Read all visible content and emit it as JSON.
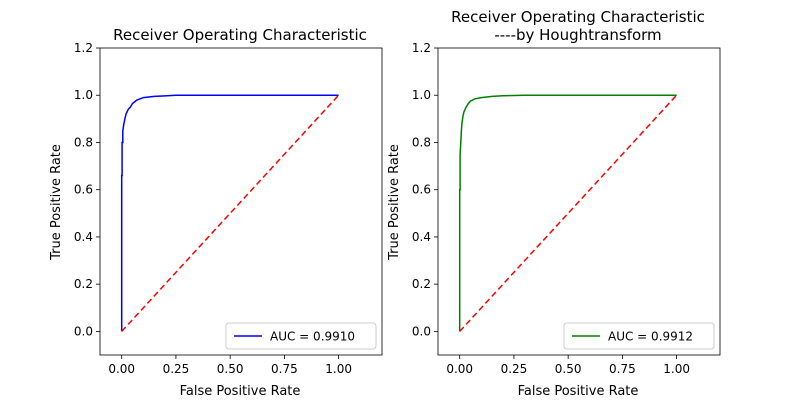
{
  "chart_data": [
    {
      "type": "line",
      "title": "Receiver Operating Characteristic",
      "xlabel": "False Positive Rate",
      "ylabel": "True Positive Rate",
      "xlim": [
        -0.1,
        1.2
      ],
      "ylim": [
        -0.1,
        1.2
      ],
      "x_ticks": [
        "0.00",
        "0.25",
        "0.50",
        "0.75",
        "1.00"
      ],
      "y_ticks": [
        "0.0",
        "0.2",
        "0.4",
        "0.6",
        "0.8",
        "1.0",
        "1.2"
      ],
      "legend_position": "lower-right",
      "series": [
        {
          "name": "AUC = 0.9910",
          "color": "#0000ff",
          "style": "solid",
          "x": [
            0,
            0,
            0.002,
            0.002,
            0.005,
            0.005,
            0.01,
            0.015,
            0.02,
            0.03,
            0.04,
            0.05,
            0.07,
            0.1,
            0.15,
            0.2,
            0.25,
            0.3,
            0.5,
            0.75,
            1.0
          ],
          "y": [
            0,
            0.66,
            0.66,
            0.8,
            0.8,
            0.85,
            0.88,
            0.9,
            0.92,
            0.94,
            0.95,
            0.965,
            0.98,
            0.99,
            0.995,
            0.997,
            1.0,
            1.0,
            1.0,
            1.0,
            1.0
          ]
        },
        {
          "name": "",
          "color": "#ff0000",
          "style": "dashed",
          "x": [
            0,
            1
          ],
          "y": [
            0,
            1
          ]
        }
      ]
    },
    {
      "type": "line",
      "title": "Receiver Operating Characteristic",
      "subtitle": "----by Houghtransform",
      "xlabel": "False Positive Rate",
      "ylabel": "True Positive Rate",
      "xlim": [
        -0.1,
        1.2
      ],
      "ylim": [
        -0.1,
        1.2
      ],
      "x_ticks": [
        "0.00",
        "0.25",
        "0.50",
        "0.75",
        "1.00"
      ],
      "y_ticks": [
        "0.0",
        "0.2",
        "0.4",
        "0.6",
        "0.8",
        "1.0",
        "1.2"
      ],
      "legend_position": "lower-right",
      "series": [
        {
          "name": "AUC = 0.9912",
          "color": "#008000",
          "style": "solid",
          "x": [
            0,
            0,
            0.002,
            0.002,
            0.005,
            0.008,
            0.01,
            0.015,
            0.02,
            0.03,
            0.04,
            0.05,
            0.07,
            0.1,
            0.15,
            0.2,
            0.3,
            0.5,
            0.75,
            1.0
          ],
          "y": [
            0,
            0.6,
            0.6,
            0.75,
            0.8,
            0.85,
            0.88,
            0.91,
            0.93,
            0.95,
            0.965,
            0.975,
            0.985,
            0.99,
            0.995,
            0.998,
            1.0,
            1.0,
            1.0,
            1.0
          ]
        },
        {
          "name": "",
          "color": "#ff0000",
          "style": "dashed",
          "x": [
            0,
            1
          ],
          "y": [
            0,
            1
          ]
        }
      ]
    }
  ]
}
